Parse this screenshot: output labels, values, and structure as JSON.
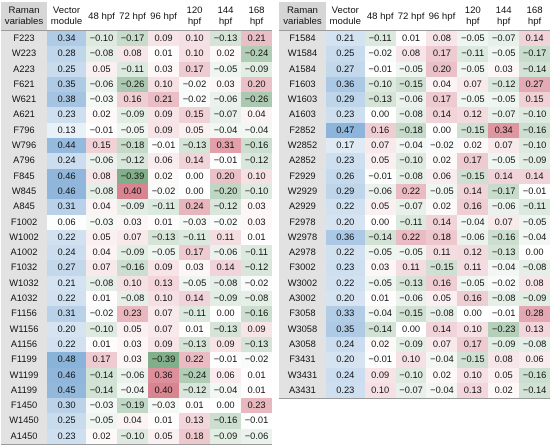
{
  "headers": [
    "Raman variables",
    "Vector module",
    "48 hpf",
    "72 hpf",
    "96 hpf",
    "120 hpf",
    "144 hpf",
    "168 hpf"
  ],
  "colors": {
    "positive": "#c0384d",
    "negative": "#2f7a3c",
    "vector": "#3a7ec0",
    "variable_bg": "#e2e2e2"
  },
  "left_table": [
    {
      "var": "F223",
      "vec": "0.34",
      "vals": [
        "−0.10",
        "−0.17",
        "0.09",
        "0.10",
        "−0.13",
        "0.21"
      ]
    },
    {
      "var": "W223",
      "vec": "0.28",
      "vals": [
        "−0.08",
        "0.08",
        "0.01",
        "0.10",
        "0.02",
        "−0.24"
      ]
    },
    {
      "var": "A223",
      "vec": "0.25",
      "vals": [
        "0.05",
        "−0.11",
        "0.03",
        "0.17",
        "−0.05",
        "−0.09"
      ]
    },
    {
      "var": "F621",
      "vec": "0.35",
      "vals": [
        "−0.06",
        "−0.26",
        "0.10",
        "−0.02",
        "0.03",
        "0.20"
      ]
    },
    {
      "var": "W621",
      "vec": "0.38",
      "vals": [
        "−0.03",
        "0.16",
        "0.21",
        "−0.02",
        "−0.06",
        "−0.26"
      ]
    },
    {
      "var": "A621",
      "vec": "0.23",
      "vals": [
        "0.02",
        "−0.09",
        "0.09",
        "0.15",
        "−0.07",
        "0.04"
      ]
    },
    {
      "var": "F796",
      "vec": "0.13",
      "vals": [
        "−0.01",
        "−0.05",
        "0.09",
        "0.05",
        "−0.04",
        "−0.04"
      ]
    },
    {
      "var": "W796",
      "vec": "0.44",
      "vals": [
        "0.15",
        "−0.18",
        "−0.01",
        "−0.13",
        "0.31",
        "−0.16"
      ]
    },
    {
      "var": "A796",
      "vec": "0.24",
      "vals": [
        "−0.06",
        "−0.12",
        "0.06",
        "0.14",
        "−0.01",
        "−0.12"
      ]
    },
    {
      "var": "F845",
      "vec": "0.46",
      "vals": [
        "0.08",
        "−0.39",
        "0.02",
        "0.00",
        "0.20",
        "0.10"
      ]
    },
    {
      "var": "W845",
      "vec": "0.46",
      "vals": [
        "−0.08",
        "0.40",
        "−0.02",
        "0.00",
        "−0.20",
        "−0.10"
      ]
    },
    {
      "var": "A845",
      "vec": "0.31",
      "vals": [
        "0.04",
        "−0.09",
        "−0.11",
        "0.24",
        "−0.12",
        "0.03"
      ]
    },
    {
      "var": "F1002",
      "vec": "0.06",
      "vals": [
        "−0.03",
        "0.03",
        "0.01",
        "−0.03",
        "−0.02",
        "0.03"
      ]
    },
    {
      "var": "W1002",
      "vec": "0.22",
      "vals": [
        "0.05",
        "0.07",
        "−0.13",
        "−0.11",
        "0.11",
        "0.01"
      ]
    },
    {
      "var": "A1002",
      "vec": "0.24",
      "vals": [
        "0.04",
        "−0.09",
        "−0.05",
        "0.17",
        "−0.06",
        "−0.11"
      ]
    },
    {
      "var": "F1032",
      "vec": "0.27",
      "vals": [
        "0.07",
        "−0.16",
        "0.09",
        "0.03",
        "0.14",
        "−0.12"
      ]
    },
    {
      "var": "W1032",
      "vec": "0.21",
      "vals": [
        "−0.08",
        "0.10",
        "0.13",
        "−0.05",
        "−0.08",
        "−0.02"
      ]
    },
    {
      "var": "A1032",
      "vec": "0.22",
      "vals": [
        "0.01",
        "−0.08",
        "0.10",
        "0.14",
        "−0.09",
        "−0.08"
      ]
    },
    {
      "var": "F1156",
      "vec": "0.31",
      "vals": [
        "−0.02",
        "0.23",
        "0.07",
        "−0.11",
        "0.00",
        "−0.16"
      ]
    },
    {
      "var": "W1156",
      "vec": "0.20",
      "vals": [
        "−0.10",
        "0.05",
        "0.07",
        "0.01",
        "−0.13",
        "0.09"
      ]
    },
    {
      "var": "A1156",
      "vec": "0.22",
      "vals": [
        "0.01",
        "0.03",
        "0.09",
        "−0.13",
        "0.09",
        "−0.13"
      ]
    },
    {
      "var": "F1199",
      "vec": "0.48",
      "vals": [
        "0.17",
        "0.03",
        "−0.39",
        "0.22",
        "−0.01",
        "−0.02"
      ]
    },
    {
      "var": "W1199",
      "vec": "0.46",
      "vals": [
        "−0.14",
        "−0.06",
        "0.36",
        "−0.24",
        "0.06",
        "0.01"
      ]
    },
    {
      "var": "A1199",
      "vec": "0.45",
      "vals": [
        "−0.14",
        "−0.04",
        "0.40",
        "−0.12",
        "−0.04",
        "0.01"
      ]
    },
    {
      "var": "F1450",
      "vec": "0.30",
      "vals": [
        "−0.03",
        "−0.19",
        "−0.03",
        "0.01",
        "0.00",
        "0.23"
      ]
    },
    {
      "var": "W1450",
      "vec": "0.25",
      "vals": [
        "−0.05",
        "0.04",
        "0.01",
        "0.13",
        "−0.16",
        "−0.01"
      ]
    },
    {
      "var": "A1450",
      "vec": "0.23",
      "vals": [
        "0.02",
        "−0.10",
        "0.05",
        "0.18",
        "−0.09",
        "−0.06"
      ]
    }
  ],
  "right_table": [
    {
      "var": "F1584",
      "vec": "0.21",
      "vals": [
        "−0.11",
        "0.01",
        "0.08",
        "−0.05",
        "−0.07",
        "0.14"
      ]
    },
    {
      "var": "W1584",
      "vec": "0.25",
      "vals": [
        "−0.02",
        "0.08",
        "0.17",
        "−0.11",
        "−0.05",
        "−0.17"
      ]
    },
    {
      "var": "A1584",
      "vec": "0.27",
      "vals": [
        "−0.01",
        "−0.05",
        "0.20",
        "−0.05",
        "0.03",
        "−0.14"
      ]
    },
    {
      "var": "F1603",
      "vec": "0.36",
      "vals": [
        "−0.10",
        "−0.15",
        "0.04",
        "0.07",
        "−0.12",
        "0.27"
      ]
    },
    {
      "var": "W1603",
      "vec": "0.29",
      "vals": [
        "−0.13",
        "−0.06",
        "0.17",
        "−0.05",
        "−0.05",
        "0.15"
      ]
    },
    {
      "var": "A1603",
      "vec": "0.23",
      "vals": [
        "0.00",
        "−0.08",
        "0.14",
        "0.12",
        "−0.07",
        "−0.10"
      ]
    },
    {
      "var": "F2852",
      "vec": "0.47",
      "vals": [
        "0.16",
        "−0.18",
        "0.00",
        "−0.15",
        "0.34",
        "−0.16"
      ]
    },
    {
      "var": "W2852",
      "vec": "0.17",
      "vals": [
        "0.07",
        "−0.04",
        "−0.02",
        "0.02",
        "0.07",
        "−0.10"
      ]
    },
    {
      "var": "A2852",
      "vec": "0.23",
      "vals": [
        "0.05",
        "−0.10",
        "0.02",
        "0.17",
        "−0.05",
        "−0.09"
      ]
    },
    {
      "var": "F2929",
      "vec": "0.26",
      "vals": [
        "−0.01",
        "−0.08",
        "0.06",
        "−0.15",
        "0.14",
        "0.14"
      ]
    },
    {
      "var": "W2929",
      "vec": "0.29",
      "vals": [
        "−0.06",
        "0.22",
        "−0.05",
        "0.14",
        "−0.17",
        "−0.01"
      ]
    },
    {
      "var": "A2929",
      "vec": "0.22",
      "vals": [
        "0.05",
        "−0.07",
        "0.02",
        "0.16",
        "−0.06",
        "−0.11"
      ]
    },
    {
      "var": "F2978",
      "vec": "0.20",
      "vals": [
        "0.00",
        "−0.11",
        "0.14",
        "−0.04",
        "0.07",
        "−0.05"
      ]
    },
    {
      "var": "W2978",
      "vec": "0.36",
      "vals": [
        "−0.14",
        "0.22",
        "0.18",
        "−0.06",
        "−0.16",
        "−0.04"
      ]
    },
    {
      "var": "A2978",
      "vec": "0.22",
      "vals": [
        "−0.05",
        "−0.05",
        "0.11",
        "0.12",
        "−0.13",
        "0.00"
      ]
    },
    {
      "var": "F3002",
      "vec": "0.23",
      "vals": [
        "0.03",
        "0.11",
        "−0.15",
        "0.11",
        "−0.04",
        "−0.08"
      ]
    },
    {
      "var": "W3002",
      "vec": "0.22",
      "vals": [
        "−0.05",
        "−0.13",
        "0.16",
        "−0.05",
        "−0.02",
        "0.08"
      ]
    },
    {
      "var": "A3002",
      "vec": "0.20",
      "vals": [
        "0.01",
        "−0.06",
        "0.05",
        "0.16",
        "−0.08",
        "−0.09"
      ]
    },
    {
      "var": "F3058",
      "vec": "0.33",
      "vals": [
        "−0.04",
        "−0.15",
        "−0.08",
        "0.00",
        "−0.01",
        "0.28"
      ]
    },
    {
      "var": "W3058",
      "vec": "0.35",
      "vals": [
        "−0.14",
        "0.00",
        "0.14",
        "0.10",
        "−0.23",
        "0.13"
      ]
    },
    {
      "var": "A3058",
      "vec": "0.24",
      "vals": [
        "0.02",
        "−0.09",
        "0.07",
        "0.17",
        "−0.09",
        "−0.08"
      ]
    },
    {
      "var": "F3431",
      "vec": "0.20",
      "vals": [
        "−0.01",
        "0.10",
        "−0.04",
        "−0.15",
        "0.08",
        "0.06"
      ]
    },
    {
      "var": "W3431",
      "vec": "0.24",
      "vals": [
        "0.09",
        "−0.10",
        "0.02",
        "0.10",
        "0.05",
        "−0.16"
      ]
    },
    {
      "var": "A3431",
      "vec": "0.23",
      "vals": [
        "0.10",
        "−0.07",
        "−0.04",
        "0.13",
        "0.02",
        "−0.14"
      ]
    }
  ]
}
